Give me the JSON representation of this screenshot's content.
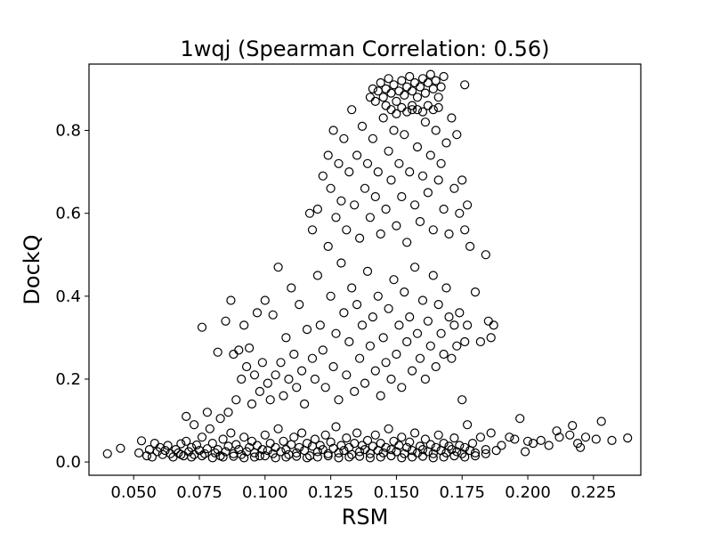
{
  "chart_data": {
    "type": "scatter",
    "title": "1wqj (Spearman Correlation: 0.56)",
    "xlabel": "RSM",
    "ylabel": "DockQ",
    "xlim": [
      0.033,
      0.243
    ],
    "ylim": [
      -0.032,
      0.96
    ],
    "x_ticks": [
      {
        "value": 0.05,
        "label": "0.050"
      },
      {
        "value": 0.075,
        "label": "0.075"
      },
      {
        "value": 0.1,
        "label": "0.100"
      },
      {
        "value": 0.125,
        "label": "0.125"
      },
      {
        "value": 0.15,
        "label": "0.150"
      },
      {
        "value": 0.175,
        "label": "0.175"
      },
      {
        "value": 0.2,
        "label": "0.200"
      },
      {
        "value": 0.225,
        "label": "0.225"
      }
    ],
    "y_ticks": [
      {
        "value": 0.0,
        "label": "0.0"
      },
      {
        "value": 0.2,
        "label": "0.2"
      },
      {
        "value": 0.4,
        "label": "0.4"
      },
      {
        "value": 0.6,
        "label": "0.6"
      },
      {
        "value": 0.8,
        "label": "0.8"
      }
    ],
    "grid": false,
    "marker": "open-circle",
    "marker_color": "#000000",
    "points": [
      [
        0.04,
        0.02
      ],
      [
        0.045,
        0.033
      ],
      [
        0.052,
        0.022
      ],
      [
        0.053,
        0.051
      ],
      [
        0.055,
        0.015
      ],
      [
        0.056,
        0.03
      ],
      [
        0.057,
        0.012
      ],
      [
        0.058,
        0.045
      ],
      [
        0.059,
        0.025
      ],
      [
        0.06,
        0.035
      ],
      [
        0.061,
        0.018
      ],
      [
        0.062,
        0.028
      ],
      [
        0.063,
        0.04
      ],
      [
        0.064,
        0.02
      ],
      [
        0.065,
        0.012
      ],
      [
        0.066,
        0.03
      ],
      [
        0.067,
        0.022
      ],
      [
        0.068,
        0.044
      ],
      [
        0.069,
        0.015
      ],
      [
        0.07,
        0.05
      ],
      [
        0.071,
        0.025
      ],
      [
        0.072,
        0.035
      ],
      [
        0.073,
        0.018
      ],
      [
        0.074,
        0.041
      ],
      [
        0.075,
        0.028
      ],
      [
        0.076,
        0.06
      ],
      [
        0.077,
        0.02
      ],
      [
        0.078,
        0.032
      ],
      [
        0.079,
        0.08
      ],
      [
        0.08,
        0.045
      ],
      [
        0.081,
        0.022
      ],
      [
        0.082,
        0.03
      ],
      [
        0.083,
        0.015
      ],
      [
        0.084,
        0.055
      ],
      [
        0.085,
        0.025
      ],
      [
        0.086,
        0.038
      ],
      [
        0.087,
        0.07
      ],
      [
        0.088,
        0.02
      ],
      [
        0.089,
        0.042
      ],
      [
        0.09,
        0.03
      ],
      [
        0.091,
        0.018
      ],
      [
        0.092,
        0.06
      ],
      [
        0.093,
        0.025
      ],
      [
        0.094,
        0.035
      ],
      [
        0.095,
        0.05
      ],
      [
        0.096,
        0.022
      ],
      [
        0.097,
        0.04
      ],
      [
        0.098,
        0.015
      ],
      [
        0.099,
        0.03
      ],
      [
        0.1,
        0.065
      ],
      [
        0.101,
        0.028
      ],
      [
        0.102,
        0.045
      ],
      [
        0.103,
        0.02
      ],
      [
        0.104,
        0.035
      ],
      [
        0.105,
        0.08
      ],
      [
        0.106,
        0.025
      ],
      [
        0.107,
        0.05
      ],
      [
        0.108,
        0.03
      ],
      [
        0.109,
        0.018
      ],
      [
        0.11,
        0.042
      ],
      [
        0.111,
        0.06
      ],
      [
        0.112,
        0.022
      ],
      [
        0.113,
        0.035
      ],
      [
        0.114,
        0.07
      ],
      [
        0.115,
        0.028
      ],
      [
        0.116,
        0.045
      ],
      [
        0.117,
        0.015
      ],
      [
        0.118,
        0.038
      ],
      [
        0.119,
        0.055
      ],
      [
        0.12,
        0.025
      ],
      [
        0.121,
        0.04
      ],
      [
        0.122,
        0.03
      ],
      [
        0.123,
        0.065
      ],
      [
        0.124,
        0.02
      ],
      [
        0.125,
        0.048
      ],
      [
        0.126,
        0.033
      ],
      [
        0.127,
        0.085
      ],
      [
        0.128,
        0.022
      ],
      [
        0.129,
        0.04
      ],
      [
        0.13,
        0.028
      ],
      [
        0.131,
        0.058
      ],
      [
        0.132,
        0.035
      ],
      [
        0.133,
        0.018
      ],
      [
        0.134,
        0.045
      ],
      [
        0.135,
        0.07
      ],
      [
        0.136,
        0.025
      ],
      [
        0.137,
        0.04
      ],
      [
        0.138,
        0.03
      ],
      [
        0.139,
        0.052
      ],
      [
        0.14,
        0.02
      ],
      [
        0.141,
        0.038
      ],
      [
        0.142,
        0.065
      ],
      [
        0.143,
        0.028
      ],
      [
        0.144,
        0.045
      ],
      [
        0.145,
        0.022
      ],
      [
        0.146,
        0.035
      ],
      [
        0.147,
        0.08
      ],
      [
        0.148,
        0.03
      ],
      [
        0.149,
        0.05
      ],
      [
        0.15,
        0.025
      ],
      [
        0.151,
        0.04
      ],
      [
        0.152,
        0.06
      ],
      [
        0.153,
        0.02
      ],
      [
        0.154,
        0.035
      ],
      [
        0.155,
        0.048
      ],
      [
        0.156,
        0.028
      ],
      [
        0.157,
        0.07
      ],
      [
        0.158,
        0.022
      ],
      [
        0.159,
        0.038
      ],
      [
        0.16,
        0.03
      ],
      [
        0.161,
        0.055
      ],
      [
        0.162,
        0.025
      ],
      [
        0.163,
        0.042
      ],
      [
        0.164,
        0.02
      ],
      [
        0.165,
        0.035
      ],
      [
        0.166,
        0.065
      ],
      [
        0.167,
        0.028
      ],
      [
        0.168,
        0.045
      ],
      [
        0.169,
        0.022
      ],
      [
        0.17,
        0.038
      ],
      [
        0.171,
        0.03
      ],
      [
        0.172,
        0.058
      ],
      [
        0.173,
        0.025
      ],
      [
        0.174,
        0.04
      ],
      [
        0.175,
        0.02
      ],
      [
        0.176,
        0.035
      ],
      [
        0.177,
        0.09
      ],
      [
        0.178,
        0.028
      ],
      [
        0.179,
        0.045
      ],
      [
        0.18,
        0.022
      ],
      [
        0.182,
        0.06
      ],
      [
        0.184,
        0.03
      ],
      [
        0.186,
        0.07
      ],
      [
        0.188,
        0.028
      ],
      [
        0.19,
        0.04
      ],
      [
        0.193,
        0.06
      ],
      [
        0.195,
        0.055
      ],
      [
        0.197,
        0.105
      ],
      [
        0.199,
        0.025
      ],
      [
        0.2,
        0.05
      ],
      [
        0.202,
        0.045
      ],
      [
        0.205,
        0.052
      ],
      [
        0.208,
        0.04
      ],
      [
        0.211,
        0.075
      ],
      [
        0.212,
        0.06
      ],
      [
        0.216,
        0.065
      ],
      [
        0.217,
        0.088
      ],
      [
        0.219,
        0.045
      ],
      [
        0.22,
        0.035
      ],
      [
        0.222,
        0.06
      ],
      [
        0.226,
        0.055
      ],
      [
        0.228,
        0.098
      ],
      [
        0.232,
        0.052
      ],
      [
        0.238,
        0.058
      ],
      [
        0.068,
        0.018
      ],
      [
        0.072,
        0.012
      ],
      [
        0.076,
        0.015
      ],
      [
        0.08,
        0.01
      ],
      [
        0.084,
        0.012
      ],
      [
        0.088,
        0.014
      ],
      [
        0.092,
        0.01
      ],
      [
        0.096,
        0.012
      ],
      [
        0.1,
        0.015
      ],
      [
        0.104,
        0.01
      ],
      [
        0.108,
        0.012
      ],
      [
        0.112,
        0.014
      ],
      [
        0.116,
        0.01
      ],
      [
        0.12,
        0.012
      ],
      [
        0.124,
        0.015
      ],
      [
        0.128,
        0.01
      ],
      [
        0.132,
        0.012
      ],
      [
        0.136,
        0.014
      ],
      [
        0.14,
        0.01
      ],
      [
        0.144,
        0.012
      ],
      [
        0.148,
        0.015
      ],
      [
        0.152,
        0.01
      ],
      [
        0.156,
        0.012
      ],
      [
        0.16,
        0.014
      ],
      [
        0.164,
        0.01
      ],
      [
        0.168,
        0.012
      ],
      [
        0.172,
        0.015
      ],
      [
        0.176,
        0.012
      ],
      [
        0.18,
        0.015
      ],
      [
        0.184,
        0.02
      ],
      [
        0.07,
        0.11
      ],
      [
        0.073,
        0.09
      ],
      [
        0.076,
        0.325
      ],
      [
        0.078,
        0.12
      ],
      [
        0.082,
        0.265
      ],
      [
        0.083,
        0.105
      ],
      [
        0.085,
        0.34
      ],
      [
        0.086,
        0.12
      ],
      [
        0.087,
        0.39
      ],
      [
        0.088,
        0.26
      ],
      [
        0.089,
        0.15
      ],
      [
        0.09,
        0.27
      ],
      [
        0.091,
        0.2
      ],
      [
        0.092,
        0.33
      ],
      [
        0.093,
        0.23
      ],
      [
        0.094,
        0.275
      ],
      [
        0.095,
        0.14
      ],
      [
        0.096,
        0.21
      ],
      [
        0.097,
        0.36
      ],
      [
        0.098,
        0.17
      ],
      [
        0.099,
        0.24
      ],
      [
        0.1,
        0.39
      ],
      [
        0.101,
        0.19
      ],
      [
        0.102,
        0.15
      ],
      [
        0.103,
        0.355
      ],
      [
        0.104,
        0.21
      ],
      [
        0.105,
        0.47
      ],
      [
        0.106,
        0.24
      ],
      [
        0.107,
        0.16
      ],
      [
        0.108,
        0.3
      ],
      [
        0.109,
        0.2
      ],
      [
        0.11,
        0.42
      ],
      [
        0.111,
        0.26
      ],
      [
        0.112,
        0.18
      ],
      [
        0.113,
        0.38
      ],
      [
        0.114,
        0.22
      ],
      [
        0.115,
        0.14
      ],
      [
        0.116,
        0.32
      ],
      [
        0.117,
        0.6
      ],
      [
        0.118,
        0.25
      ],
      [
        0.119,
        0.2
      ],
      [
        0.12,
        0.45
      ],
      [
        0.121,
        0.33
      ],
      [
        0.122,
        0.27
      ],
      [
        0.123,
        0.18
      ],
      [
        0.124,
        0.52
      ],
      [
        0.125,
        0.4
      ],
      [
        0.126,
        0.23
      ],
      [
        0.127,
        0.31
      ],
      [
        0.128,
        0.15
      ],
      [
        0.129,
        0.48
      ],
      [
        0.13,
        0.36
      ],
      [
        0.131,
        0.21
      ],
      [
        0.132,
        0.29
      ],
      [
        0.133,
        0.42
      ],
      [
        0.134,
        0.17
      ],
      [
        0.135,
        0.38
      ],
      [
        0.136,
        0.25
      ],
      [
        0.137,
        0.33
      ],
      [
        0.138,
        0.19
      ],
      [
        0.139,
        0.46
      ],
      [
        0.14,
        0.28
      ],
      [
        0.141,
        0.35
      ],
      [
        0.142,
        0.22
      ],
      [
        0.143,
        0.4
      ],
      [
        0.144,
        0.16
      ],
      [
        0.145,
        0.3
      ],
      [
        0.146,
        0.24
      ],
      [
        0.147,
        0.37
      ],
      [
        0.148,
        0.2
      ],
      [
        0.149,
        0.44
      ],
      [
        0.15,
        0.26
      ],
      [
        0.151,
        0.33
      ],
      [
        0.152,
        0.18
      ],
      [
        0.153,
        0.41
      ],
      [
        0.154,
        0.29
      ],
      [
        0.155,
        0.35
      ],
      [
        0.156,
        0.22
      ],
      [
        0.157,
        0.47
      ],
      [
        0.158,
        0.31
      ],
      [
        0.159,
        0.25
      ],
      [
        0.16,
        0.39
      ],
      [
        0.161,
        0.2
      ],
      [
        0.162,
        0.34
      ],
      [
        0.163,
        0.28
      ],
      [
        0.164,
        0.45
      ],
      [
        0.165,
        0.23
      ],
      [
        0.166,
        0.38
      ],
      [
        0.167,
        0.31
      ],
      [
        0.168,
        0.26
      ],
      [
        0.169,
        0.42
      ],
      [
        0.17,
        0.35
      ],
      [
        0.171,
        0.25
      ],
      [
        0.172,
        0.33
      ],
      [
        0.173,
        0.28
      ],
      [
        0.174,
        0.36
      ],
      [
        0.175,
        0.15
      ],
      [
        0.176,
        0.29
      ],
      [
        0.177,
        0.33
      ],
      [
        0.178,
        0.52
      ],
      [
        0.18,
        0.41
      ],
      [
        0.182,
        0.29
      ],
      [
        0.184,
        0.5
      ],
      [
        0.185,
        0.34
      ],
      [
        0.186,
        0.3
      ],
      [
        0.187,
        0.33
      ],
      [
        0.118,
        0.56
      ],
      [
        0.12,
        0.61
      ],
      [
        0.122,
        0.69
      ],
      [
        0.124,
        0.74
      ],
      [
        0.125,
        0.66
      ],
      [
        0.126,
        0.8
      ],
      [
        0.127,
        0.59
      ],
      [
        0.128,
        0.72
      ],
      [
        0.129,
        0.63
      ],
      [
        0.13,
        0.78
      ],
      [
        0.131,
        0.56
      ],
      [
        0.132,
        0.7
      ],
      [
        0.133,
        0.85
      ],
      [
        0.134,
        0.62
      ],
      [
        0.135,
        0.74
      ],
      [
        0.136,
        0.54
      ],
      [
        0.137,
        0.81
      ],
      [
        0.138,
        0.66
      ],
      [
        0.139,
        0.72
      ],
      [
        0.14,
        0.59
      ],
      [
        0.141,
        0.78
      ],
      [
        0.142,
        0.64
      ],
      [
        0.143,
        0.7
      ],
      [
        0.144,
        0.55
      ],
      [
        0.145,
        0.83
      ],
      [
        0.146,
        0.61
      ],
      [
        0.147,
        0.75
      ],
      [
        0.148,
        0.68
      ],
      [
        0.149,
        0.8
      ],
      [
        0.15,
        0.57
      ],
      [
        0.151,
        0.72
      ],
      [
        0.152,
        0.64
      ],
      [
        0.153,
        0.79
      ],
      [
        0.154,
        0.53
      ],
      [
        0.155,
        0.7
      ],
      [
        0.156,
        0.85
      ],
      [
        0.157,
        0.62
      ],
      [
        0.158,
        0.76
      ],
      [
        0.159,
        0.58
      ],
      [
        0.16,
        0.69
      ],
      [
        0.161,
        0.82
      ],
      [
        0.162,
        0.65
      ],
      [
        0.163,
        0.74
      ],
      [
        0.164,
        0.56
      ],
      [
        0.165,
        0.8
      ],
      [
        0.166,
        0.68
      ],
      [
        0.167,
        0.72
      ],
      [
        0.168,
        0.61
      ],
      [
        0.169,
        0.77
      ],
      [
        0.17,
        0.55
      ],
      [
        0.171,
        0.83
      ],
      [
        0.172,
        0.66
      ],
      [
        0.173,
        0.79
      ],
      [
        0.174,
        0.6
      ],
      [
        0.175,
        0.68
      ],
      [
        0.176,
        0.56
      ],
      [
        0.177,
        0.62
      ],
      [
        0.176,
        0.91
      ],
      [
        0.14,
        0.88
      ],
      [
        0.141,
        0.9
      ],
      [
        0.142,
        0.87
      ],
      [
        0.143,
        0.895
      ],
      [
        0.144,
        0.915
      ],
      [
        0.145,
        0.88
      ],
      [
        0.146,
        0.9
      ],
      [
        0.147,
        0.925
      ],
      [
        0.148,
        0.89
      ],
      [
        0.149,
        0.91
      ],
      [
        0.15,
        0.87
      ],
      [
        0.151,
        0.895
      ],
      [
        0.152,
        0.92
      ],
      [
        0.153,
        0.885
      ],
      [
        0.154,
        0.905
      ],
      [
        0.155,
        0.93
      ],
      [
        0.156,
        0.895
      ],
      [
        0.157,
        0.915
      ],
      [
        0.158,
        0.88
      ],
      [
        0.159,
        0.905
      ],
      [
        0.16,
        0.925
      ],
      [
        0.161,
        0.89
      ],
      [
        0.162,
        0.915
      ],
      [
        0.163,
        0.935
      ],
      [
        0.164,
        0.9
      ],
      [
        0.165,
        0.92
      ],
      [
        0.166,
        0.88
      ],
      [
        0.167,
        0.905
      ],
      [
        0.168,
        0.93
      ],
      [
        0.146,
        0.86
      ],
      [
        0.148,
        0.85
      ],
      [
        0.15,
        0.84
      ],
      [
        0.152,
        0.855
      ],
      [
        0.154,
        0.845
      ],
      [
        0.156,
        0.86
      ],
      [
        0.158,
        0.85
      ],
      [
        0.16,
        0.845
      ],
      [
        0.162,
        0.86
      ],
      [
        0.164,
        0.85
      ],
      [
        0.166,
        0.855
      ]
    ]
  }
}
